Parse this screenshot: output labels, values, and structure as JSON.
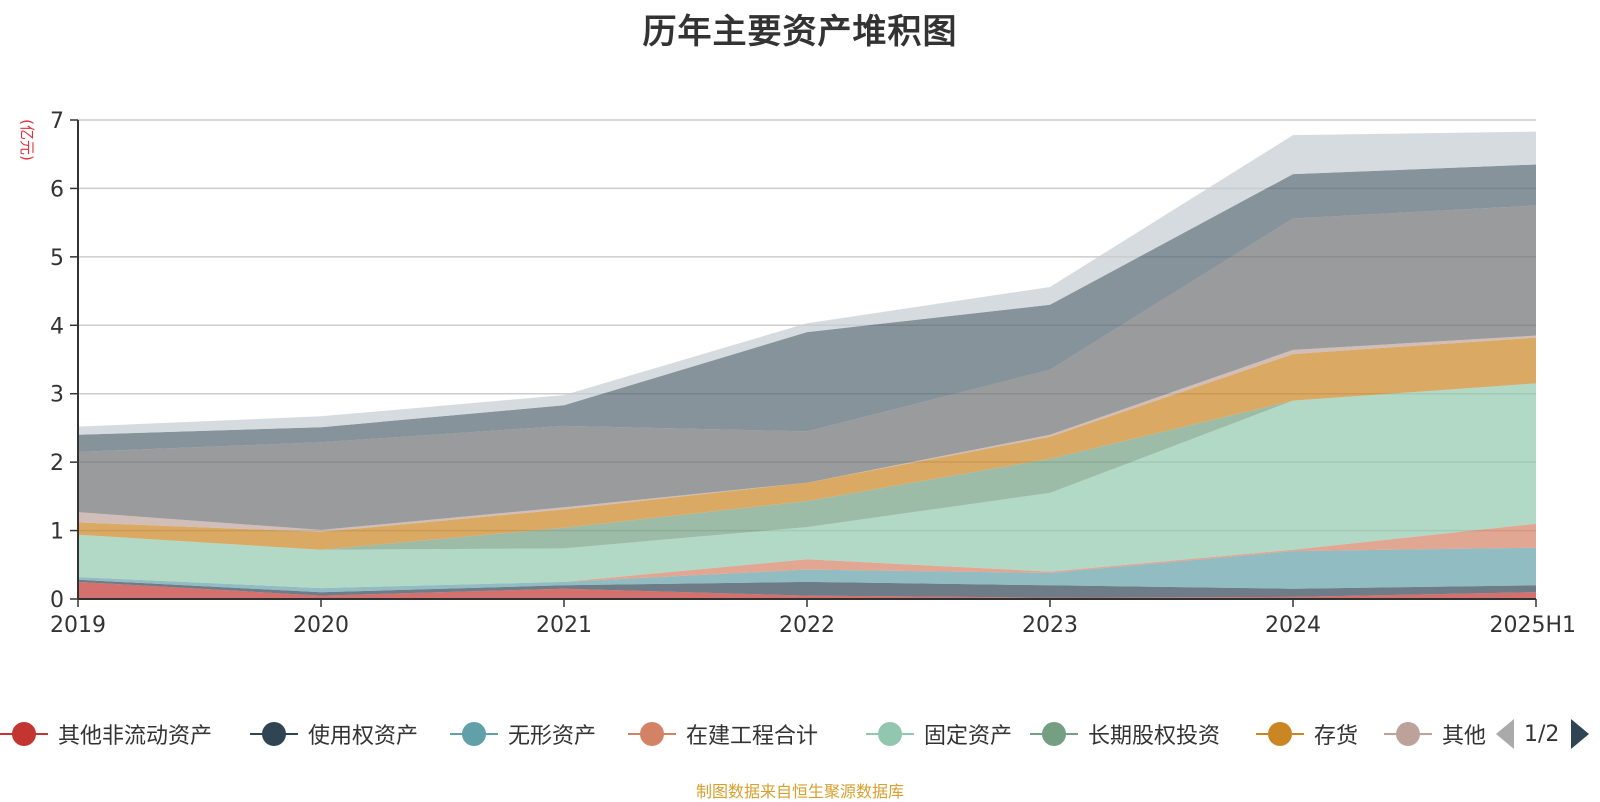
{
  "chart_data": {
    "type": "area",
    "stacked": true,
    "title": "历年主要资产堆积图",
    "unit_label": "(亿元)",
    "categories": [
      "2019",
      "2020",
      "2021",
      "2022",
      "2023",
      "2024",
      "2025H1"
    ],
    "ylim": [
      0,
      7
    ],
    "yticks": [
      0,
      1,
      2,
      3,
      4,
      5,
      6,
      7
    ],
    "grid": true,
    "legend_position": "bottom",
    "series": [
      {
        "name": "其他非流动资产",
        "color": "#c23531",
        "values": [
          0.25,
          0.05,
          0.15,
          0.05,
          0.02,
          0.03,
          0.1
        ]
      },
      {
        "name": "使用权资产",
        "color": "#2f4554",
        "values": [
          0.03,
          0.05,
          0.05,
          0.2,
          0.18,
          0.12,
          0.1
        ]
      },
      {
        "name": "无形资产",
        "color": "#61a0a8",
        "values": [
          0.04,
          0.06,
          0.05,
          0.18,
          0.18,
          0.55,
          0.55
        ]
      },
      {
        "name": "在建工程合计",
        "color": "#d48265",
        "values": [
          0.0,
          0.0,
          0.0,
          0.15,
          0.02,
          0.02,
          0.35
        ]
      },
      {
        "name": "固定资产",
        "color": "#91c7ae",
        "values": [
          0.62,
          0.56,
          0.49,
          0.47,
          1.15,
          2.18,
          2.05
        ]
      },
      {
        "name": "长期股权投资",
        "color": "#749f83",
        "values": [
          0.0,
          0.0,
          0.3,
          0.38,
          0.5,
          0.0,
          0.0
        ]
      },
      {
        "name": "存货",
        "color": "#ca8622",
        "values": [
          0.18,
          0.26,
          0.27,
          0.27,
          0.32,
          0.68,
          0.67
        ]
      },
      {
        "name": "其他",
        "color": "#bda29a",
        "values": [
          0.15,
          0.03,
          0.03,
          0.0,
          0.03,
          0.06,
          0.03
        ]
      },
      {
        "name": "",
        "color": "#6e7074",
        "values": [
          0.88,
          1.28,
          1.19,
          0.75,
          0.95,
          1.92,
          1.9
        ]
      },
      {
        "name": "",
        "color": "#546570",
        "values": [
          0.25,
          0.22,
          0.3,
          1.45,
          0.95,
          0.65,
          0.6
        ]
      },
      {
        "name": "",
        "color": "#c4ccd3",
        "values": [
          0.12,
          0.16,
          0.15,
          0.13,
          0.26,
          0.57,
          0.48
        ]
      }
    ]
  },
  "legend": {
    "items": [
      {
        "label": "其他非流动资产",
        "color": "#c23531"
      },
      {
        "label": "使用权资产",
        "color": "#2f4554"
      },
      {
        "label": "无形资产",
        "color": "#61a0a8"
      },
      {
        "label": "在建工程合计",
        "color": "#d48265"
      },
      {
        "label": "固定资产",
        "color": "#91c7ae"
      },
      {
        "label": "长期股权投资",
        "color": "#749f83"
      },
      {
        "label": "存货",
        "color": "#ca8622"
      },
      {
        "label": "其他",
        "color": "#bda29a"
      }
    ],
    "pager_text": "1/2"
  },
  "footer": {
    "source": "制图数据来自恒生聚源数据库"
  }
}
